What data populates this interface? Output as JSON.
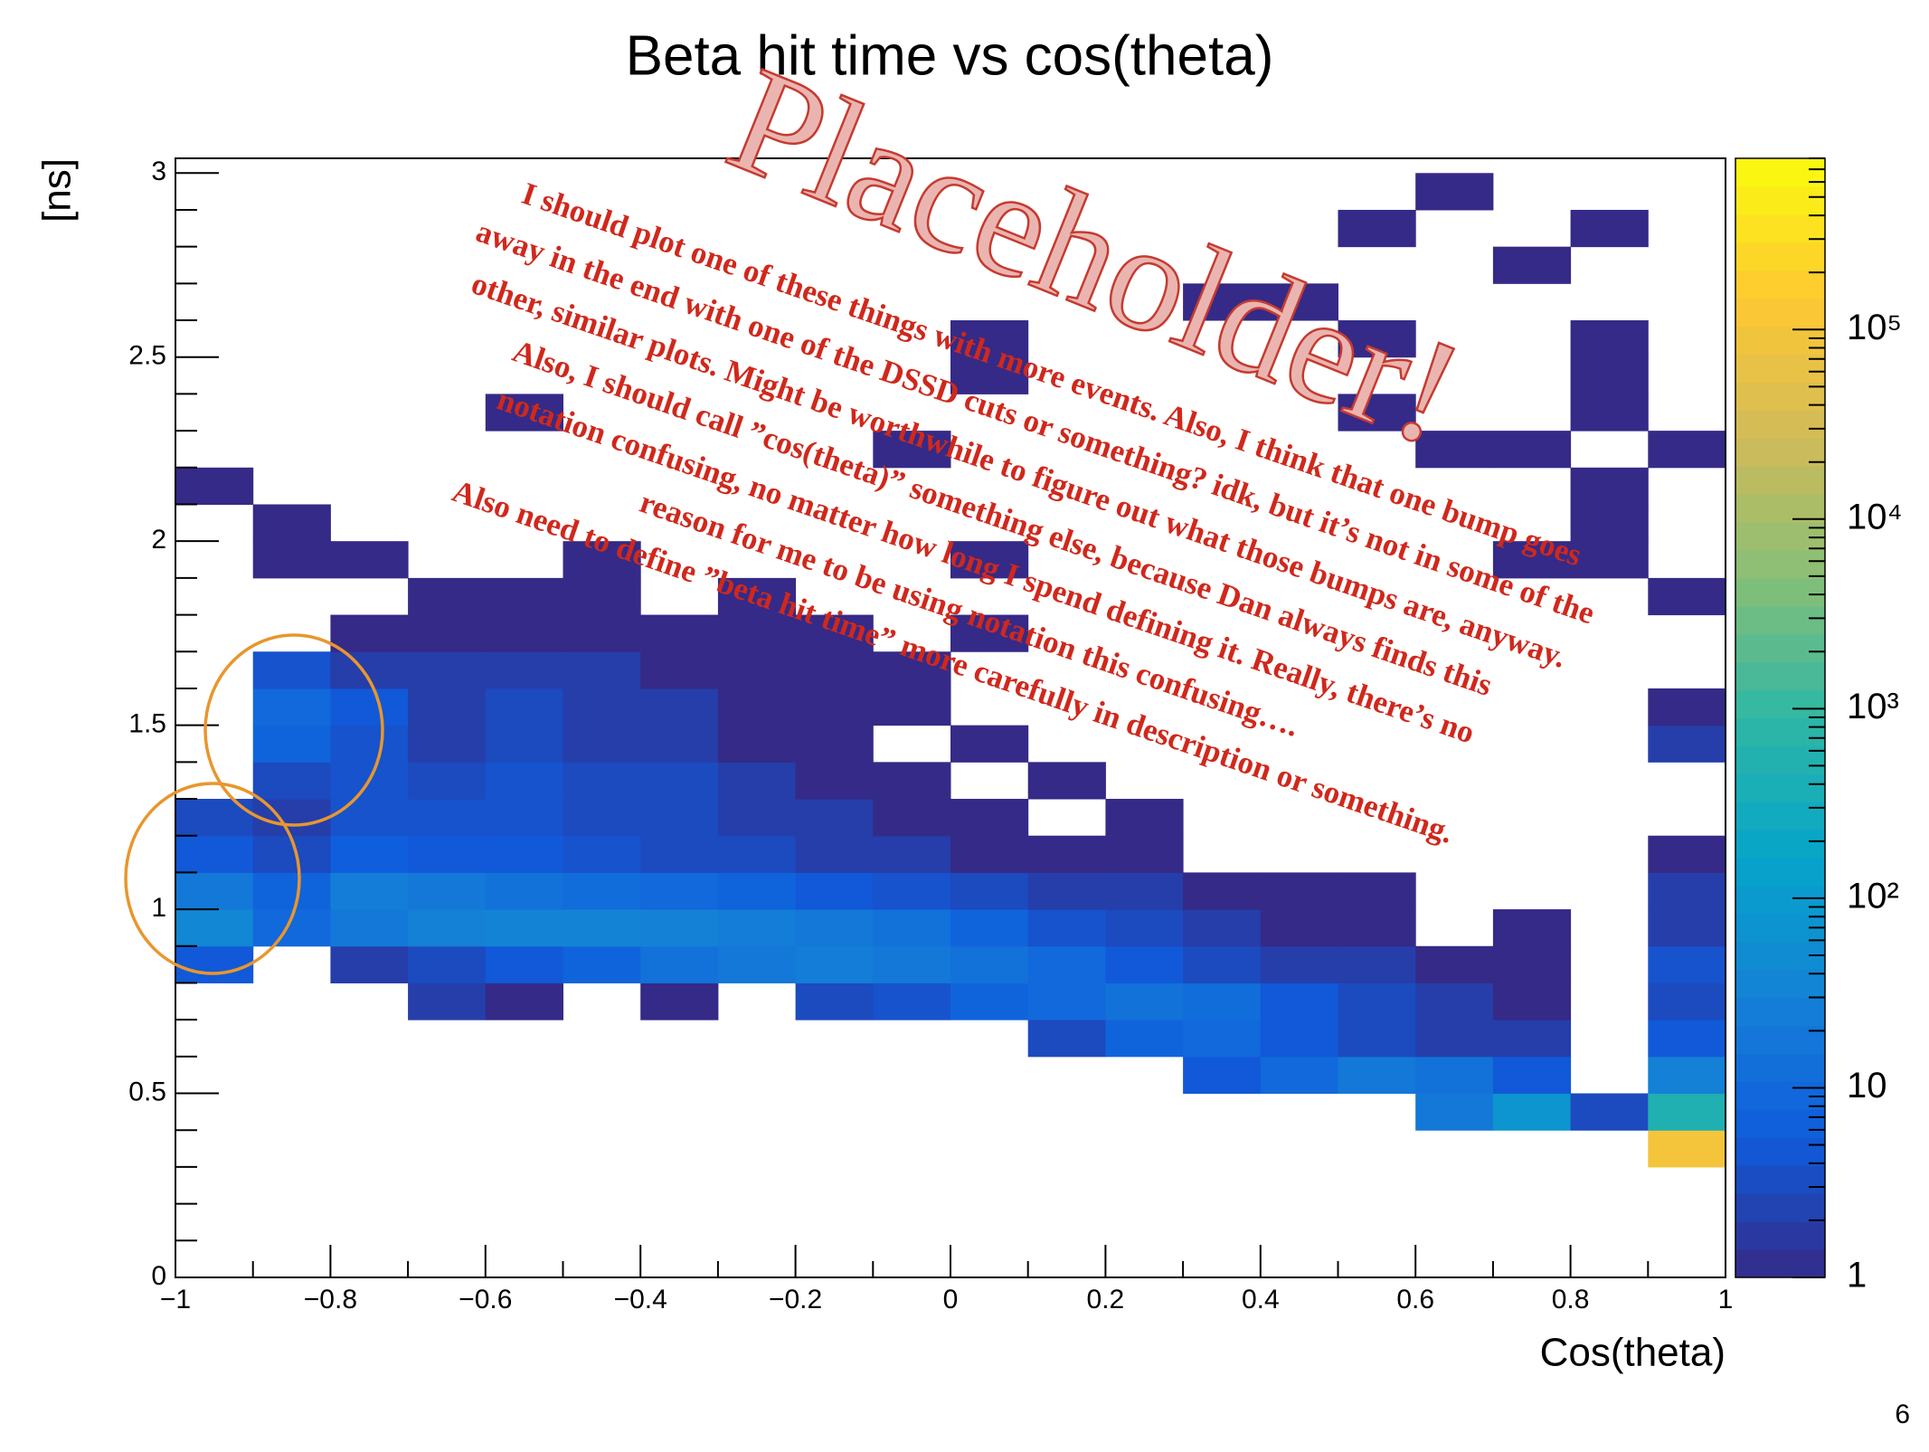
{
  "chart_data": {
    "type": "heatmap",
    "title": "Beta hit time vs cos(theta)",
    "x_label": "Cos(theta)",
    "y_label": "[ns]",
    "page_number": "6",
    "xlim": [
      -1,
      1
    ],
    "ylim": [
      0,
      3.04
    ],
    "xticks": [
      {
        "value": -1,
        "label": "−1"
      },
      {
        "value": -0.8,
        "label": "−0.8"
      },
      {
        "value": -0.6,
        "label": "−0.6"
      },
      {
        "value": -0.4,
        "label": "−0.4"
      },
      {
        "value": -0.2,
        "label": "−0.2"
      },
      0,
      0.2,
      0.4,
      0.6,
      0.8,
      1
    ],
    "yticks": [
      0,
      0.5,
      1,
      1.5,
      2,
      2.5,
      3
    ],
    "zlim": [
      1,
      800000
    ],
    "zscale": "log",
    "zticks": [
      1,
      10,
      {
        "value": 100,
        "label": "10²"
      },
      {
        "value": 1000,
        "label": "10³"
      },
      {
        "value": 10000,
        "label": "10⁴"
      },
      {
        "value": 100000,
        "label": "10⁵"
      }
    ],
    "colormap": [
      "#352a87",
      "#0f5cdd",
      "#1481d6",
      "#06a4ca",
      "#2eb7a4",
      "#87bf77",
      "#d1bb59",
      "#fec832",
      "#f9fb0e"
    ],
    "xbins": [
      -1,
      -0.9,
      -0.8,
      -0.7,
      -0.6,
      -0.5,
      -0.4,
      -0.3,
      -0.2,
      -0.1,
      0,
      0.1,
      0.2,
      0.3,
      0.4,
      0.5,
      0.6,
      0.7,
      0.8,
      0.9,
      1
    ],
    "ybins": [
      0,
      0.1,
      0.2,
      0.3,
      0.4,
      0.5,
      0.6,
      0.7,
      0.8,
      0.9,
      1,
      1.1,
      1.2,
      1.3,
      1.4,
      1.5,
      1.6,
      1.7,
      1.8,
      1.9,
      2,
      2.1,
      2.2,
      2.3,
      2.4,
      2.5,
      2.6,
      2.7,
      2.8,
      2.9,
      3
    ],
    "counts": [
      [
        null,
        null,
        null,
        null,
        null,
        null,
        null,
        null,
        null,
        null,
        null,
        null,
        null,
        null,
        null,
        null,
        null,
        null,
        null,
        null
      ],
      [
        null,
        null,
        null,
        null,
        null,
        null,
        null,
        null,
        null,
        null,
        null,
        null,
        null,
        null,
        null,
        null,
        null,
        null,
        null,
        null
      ],
      [
        null,
        null,
        null,
        null,
        null,
        null,
        null,
        null,
        null,
        null,
        null,
        null,
        null,
        null,
        null,
        null,
        null,
        null,
        null,
        null
      ],
      [
        null,
        null,
        null,
        null,
        null,
        null,
        null,
        null,
        null,
        null,
        null,
        null,
        null,
        null,
        null,
        null,
        null,
        null,
        null,
        100000
      ],
      [
        null,
        null,
        null,
        null,
        null,
        null,
        null,
        null,
        null,
        null,
        null,
        null,
        null,
        null,
        null,
        null,
        20,
        80,
        3,
        500
      ],
      [
        null,
        null,
        null,
        null,
        null,
        null,
        null,
        null,
        null,
        null,
        null,
        null,
        null,
        5,
        10,
        20,
        15,
        5,
        null,
        30
      ],
      [
        null,
        null,
        null,
        null,
        null,
        null,
        null,
        null,
        null,
        null,
        null,
        3,
        8,
        10,
        5,
        3,
        2,
        2,
        null,
        5
      ],
      [
        null,
        null,
        null,
        2,
        1,
        null,
        1,
        null,
        3,
        4,
        8,
        10,
        15,
        12,
        5,
        3,
        2,
        1,
        null,
        3
      ],
      [
        5,
        null,
        2,
        3,
        5,
        8,
        15,
        20,
        25,
        20,
        15,
        10,
        5,
        3,
        2,
        2,
        1,
        1,
        null,
        4
      ],
      [
        40,
        10,
        20,
        30,
        35,
        35,
        30,
        25,
        20,
        15,
        8,
        4,
        3,
        2,
        1,
        1,
        null,
        1,
        null,
        2
      ],
      [
        20,
        8,
        25,
        20,
        15,
        12,
        10,
        8,
        5,
        4,
        3,
        2,
        2,
        1,
        1,
        1,
        null,
        null,
        null,
        2
      ],
      [
        5,
        3,
        6,
        5,
        5,
        4,
        3,
        3,
        2,
        2,
        1,
        1,
        1,
        null,
        null,
        null,
        null,
        null,
        null,
        1
      ],
      [
        3,
        2,
        4,
        4,
        4,
        3,
        3,
        2,
        2,
        1,
        1,
        null,
        1,
        null,
        null,
        null,
        null,
        null,
        null,
        null
      ],
      [
        null,
        3,
        4,
        3,
        4,
        3,
        3,
        2,
        1,
        1,
        null,
        1,
        null,
        null,
        null,
        null,
        null,
        null,
        null,
        null
      ],
      [
        null,
        8,
        4,
        2,
        3,
        2,
        2,
        1,
        1,
        null,
        1,
        null,
        null,
        null,
        null,
        null,
        null,
        null,
        null,
        2
      ],
      [
        null,
        10,
        5,
        2,
        3,
        2,
        2,
        1,
        1,
        1,
        null,
        null,
        null,
        null,
        null,
        null,
        null,
        null,
        null,
        1
      ],
      [
        null,
        4,
        2,
        2,
        2,
        2,
        1,
        1,
        1,
        1,
        null,
        null,
        null,
        null,
        null,
        null,
        null,
        null,
        null,
        null
      ],
      [
        null,
        null,
        1,
        1,
        1,
        1,
        1,
        1,
        1,
        null,
        1,
        null,
        null,
        null,
        null,
        null,
        null,
        null,
        null,
        null
      ],
      [
        null,
        null,
        null,
        1,
        1,
        1,
        null,
        1,
        null,
        null,
        null,
        null,
        null,
        null,
        null,
        null,
        null,
        null,
        null,
        1
      ],
      [
        null,
        1,
        1,
        null,
        null,
        1,
        null,
        null,
        null,
        null,
        1,
        null,
        null,
        null,
        null,
        null,
        null,
        1,
        1,
        null
      ],
      [
        null,
        1,
        null,
        null,
        null,
        null,
        null,
        null,
        null,
        null,
        null,
        null,
        null,
        null,
        null,
        null,
        null,
        null,
        1,
        null
      ],
      [
        1,
        null,
        null,
        null,
        null,
        null,
        null,
        null,
        null,
        null,
        null,
        null,
        null,
        null,
        null,
        null,
        null,
        null,
        1,
        null
      ],
      [
        null,
        null,
        null,
        null,
        null,
        null,
        null,
        null,
        null,
        1,
        null,
        null,
        null,
        null,
        null,
        null,
        1,
        1,
        null,
        1
      ],
      [
        null,
        null,
        null,
        null,
        1,
        null,
        null,
        null,
        null,
        null,
        null,
        null,
        null,
        null,
        null,
        1,
        null,
        null,
        1,
        null
      ],
      [
        null,
        null,
        null,
        null,
        null,
        null,
        null,
        null,
        null,
        null,
        1,
        null,
        null,
        null,
        null,
        null,
        null,
        null,
        1,
        null
      ],
      [
        null,
        null,
        null,
        null,
        null,
        null,
        null,
        null,
        null,
        null,
        1,
        null,
        null,
        null,
        null,
        1,
        null,
        null,
        1,
        null
      ],
      [
        null,
        null,
        null,
        null,
        null,
        null,
        null,
        null,
        null,
        null,
        null,
        null,
        null,
        1,
        1,
        null,
        null,
        null,
        null,
        null
      ],
      [
        null,
        null,
        null,
        null,
        null,
        null,
        null,
        null,
        null,
        null,
        null,
        null,
        null,
        null,
        null,
        null,
        null,
        1,
        null,
        null
      ],
      [
        null,
        null,
        null,
        null,
        null,
        null,
        null,
        null,
        null,
        null,
        null,
        null,
        null,
        null,
        null,
        1,
        null,
        null,
        1,
        null
      ],
      [
        null,
        null,
        null,
        null,
        null,
        null,
        null,
        null,
        null,
        null,
        null,
        null,
        null,
        null,
        null,
        null,
        1,
        null,
        null,
        null
      ]
    ],
    "stamp": "Placeholder!",
    "note": [
      "I should plot one of these things with more events.  Also, I think that one bump goes",
      "away in the end with one of the DSSD cuts or something?  idk, but it’s not in some of the",
      "other, similar plots.  Might be worthwhile to figure out what those bumps are, anyway.",
      "Also, I should call ”cos(theta)” something else, because Dan always finds this",
      "notation confusing, no matter how long I spend defining it.  Really, there’s no",
      "reason for me to be using notation this confusing….",
      "Also need to define ”beta hit time” more carefully in description or something."
    ]
  }
}
